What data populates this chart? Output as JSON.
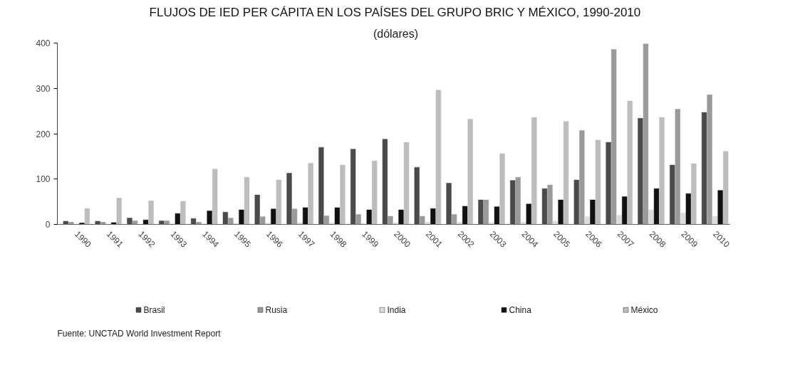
{
  "chart_data": {
    "type": "bar",
    "title": "FLUJOS DE IED PER CÁPITA EN LOS PAÍSES DEL GRUPO BRIC Y MÉXICO, 1990-2010",
    "subtitle": "(dólares)",
    "categories": [
      "1990",
      "1991",
      "1992",
      "1993",
      "1994",
      "1995",
      "1996",
      "1997",
      "1998",
      "1999",
      "2000",
      "2001",
      "2002",
      "2003",
      "2004",
      "2005",
      "2006",
      "2007",
      "2008",
      "2009",
      "2010"
    ],
    "series": [
      {
        "name": "Brasil",
        "color": "#4a4a4a",
        "values": [
          7,
          7,
          14,
          8,
          13,
          27,
          65,
          113,
          170,
          166,
          188,
          126,
          91,
          54,
          97,
          79,
          98,
          181,
          234,
          131,
          247
        ]
      },
      {
        "name": "Rusia",
        "color": "#9a9a9a",
        "values": [
          5,
          5,
          8,
          8,
          5,
          14,
          17,
          34,
          19,
          22,
          18,
          18,
          22,
          54,
          104,
          87,
          207,
          386,
          398,
          254,
          286
        ]
      },
      {
        "name": "India",
        "color": "#dcdcdc",
        "values": [
          0,
          0,
          0,
          1,
          1,
          2,
          3,
          4,
          3,
          2,
          3,
          5,
          5,
          4,
          5,
          7,
          17,
          20,
          32,
          25,
          18
        ]
      },
      {
        "name": "China",
        "color": "#111111",
        "values": [
          3,
          4,
          10,
          24,
          30,
          32,
          34,
          37,
          37,
          32,
          32,
          35,
          40,
          39,
          45,
          54,
          54,
          61,
          79,
          68,
          75
        ]
      },
      {
        "name": "México",
        "color": "#bdbdbd",
        "values": [
          35,
          58,
          52,
          51,
          122,
          104,
          98,
          135,
          131,
          140,
          181,
          296,
          232,
          156,
          236,
          227,
          186,
          272,
          236,
          134,
          161
        ]
      }
    ],
    "ylim": [
      0,
      400
    ],
    "yticks": [
      0,
      100,
      200,
      300,
      400
    ],
    "legend": "bottom",
    "annotations": [
      "Fuente: UNCTAD World Investment Report"
    ]
  }
}
